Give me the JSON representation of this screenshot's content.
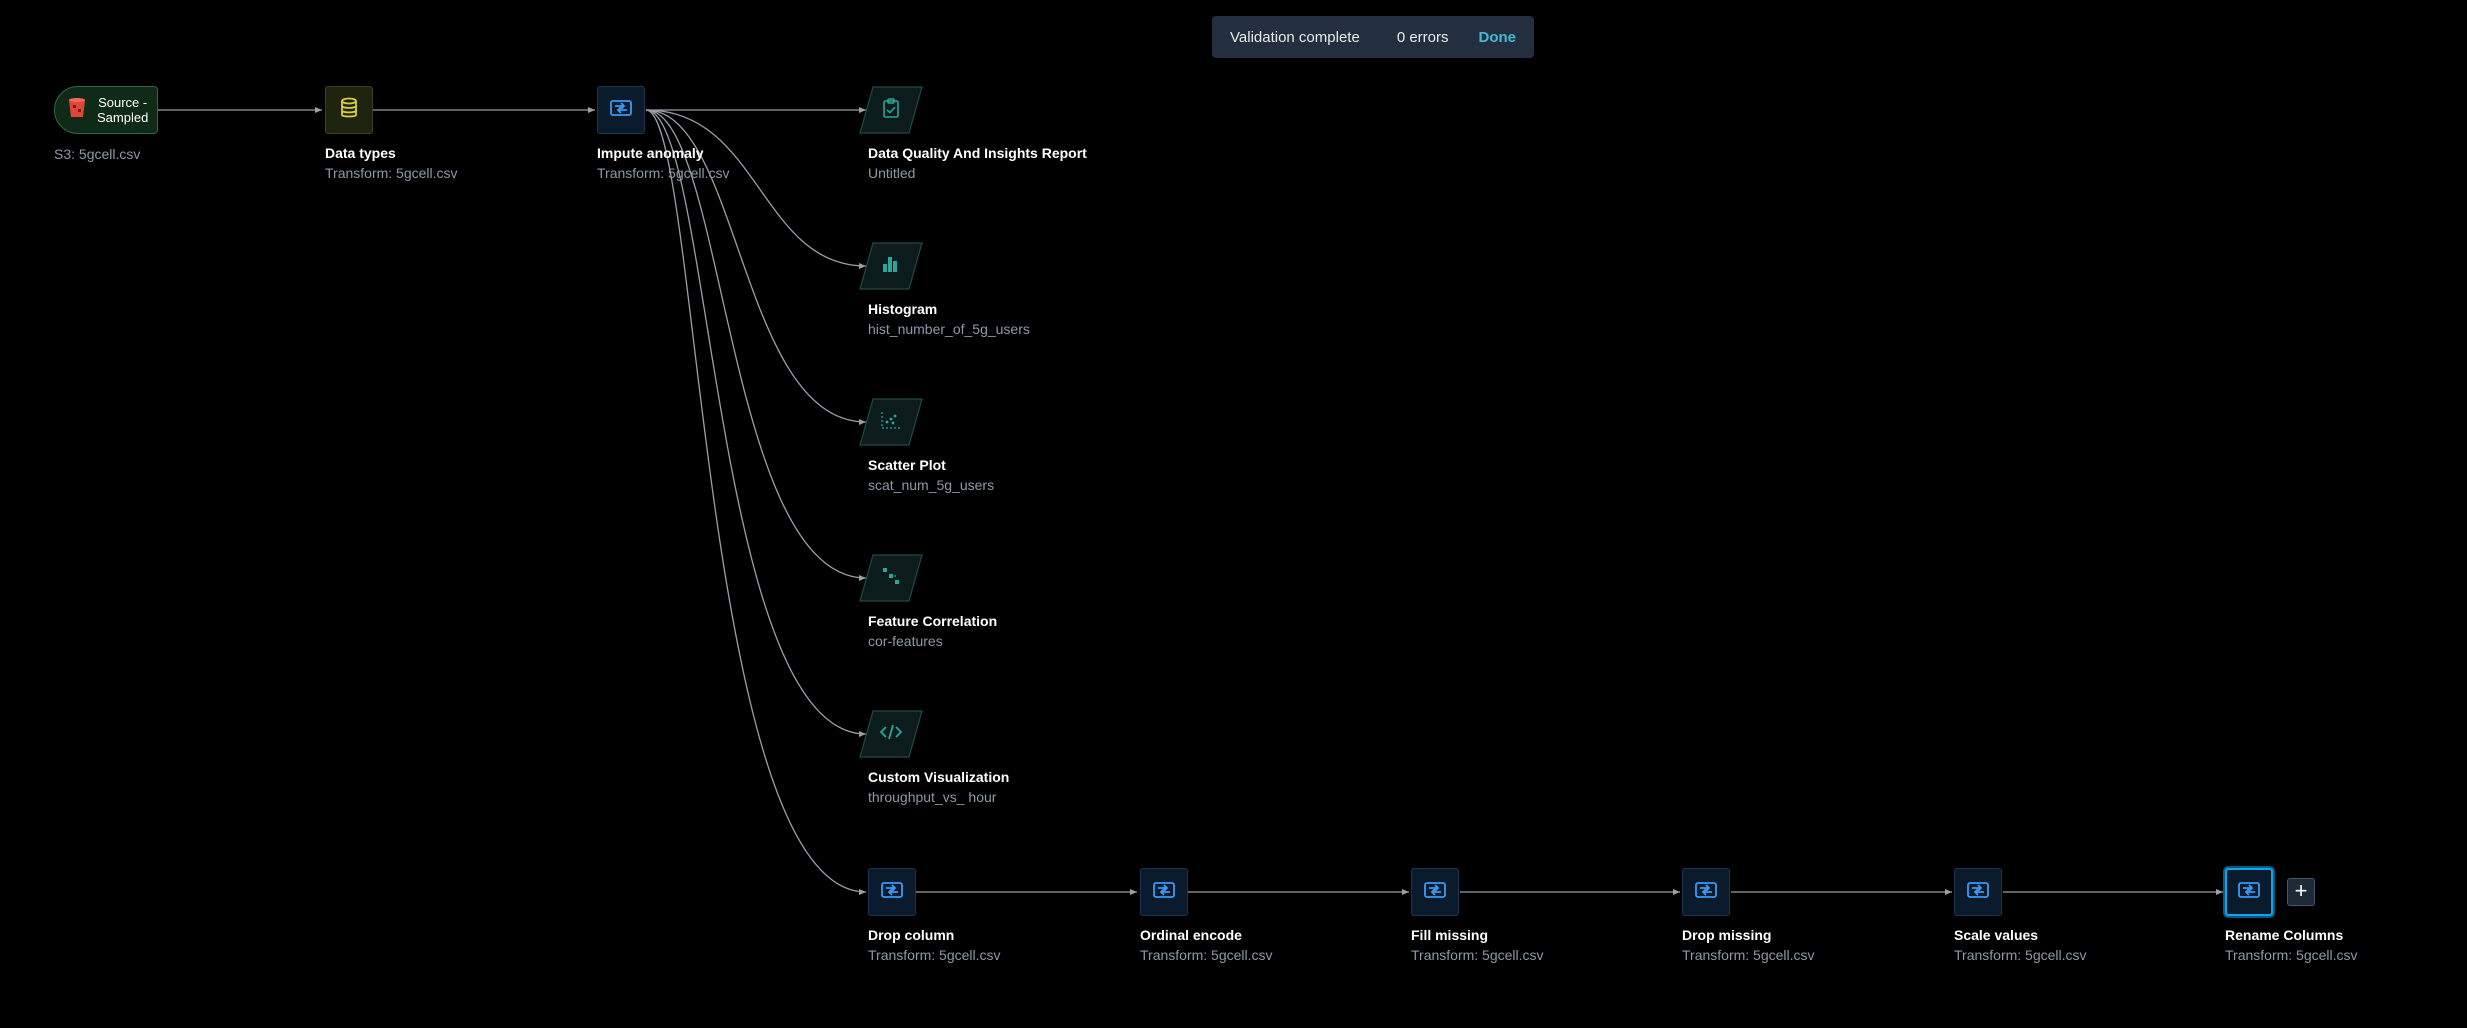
{
  "toast": {
    "title": "Validation complete",
    "count": "0 errors",
    "done_label": "Done"
  },
  "nodes": {
    "source": {
      "box_label": "Source -\nSampled",
      "subtitle": "S3: 5gcell.csv"
    },
    "data_types": {
      "name": "Data types",
      "subtitle": "Transform: 5gcell.csv"
    },
    "impute": {
      "name": "Impute anomaly",
      "subtitle": "Transform: 5gcell.csv"
    },
    "report": {
      "name": "Data Quality And Insights Report",
      "subtitle": "Untitled"
    },
    "histogram": {
      "name": "Histogram",
      "subtitle": "hist_number_of_5g_users"
    },
    "scatter": {
      "name": "Scatter Plot",
      "subtitle": "scat_num_5g_users"
    },
    "correlation": {
      "name": "Feature Correlation",
      "subtitle": "cor-features"
    },
    "custom_viz": {
      "name": "Custom Visualization",
      "subtitle": "throughput_vs_ hour"
    },
    "drop_column": {
      "name": "Drop column",
      "subtitle": "Transform: 5gcell.csv"
    },
    "ordinal_encode": {
      "name": "Ordinal encode",
      "subtitle": "Transform: 5gcell.csv"
    },
    "fill_missing": {
      "name": "Fill missing",
      "subtitle": "Transform: 5gcell.csv"
    },
    "drop_missing": {
      "name": "Drop missing",
      "subtitle": "Transform: 5gcell.csv"
    },
    "scale_values": {
      "name": "Scale values",
      "subtitle": "Transform: 5gcell.csv"
    },
    "rename_columns": {
      "name": "Rename Columns",
      "subtitle": "Transform: 5gcell.csv"
    }
  },
  "add_step_label": "+",
  "colors": {
    "transform_icon": "#3b9bf0",
    "analysis_icon": "#2aa69a",
    "datatype_icon": "#d6d23a",
    "source_icon": "#e0453a",
    "selected_border": "#0ea5e9",
    "edge": "#9aa0a6"
  },
  "icons": {
    "transform": "transform-icon",
    "datatype": "database-icon",
    "source": "s3-bucket-icon",
    "report": "clipboard-icon",
    "histogram": "bar-chart-icon",
    "scatter": "scatter-plot-icon",
    "correlation": "correlation-icon",
    "custom_viz": "code-icon"
  }
}
